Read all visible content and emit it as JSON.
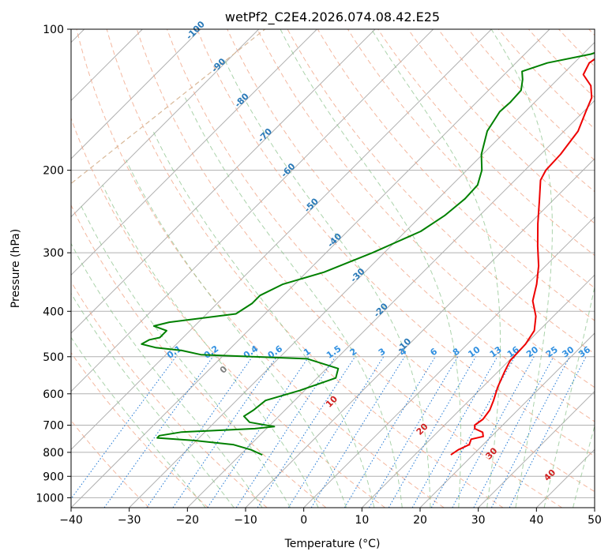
{
  "chart_data": {
    "type": "line",
    "subtype": "skew-t log-p",
    "title": "wetPf2_C2E4.2026.074.08.42.E25",
    "xlabel": "Temperature (°C)",
    "ylabel": "Pressure (hPa)",
    "xlim": [
      -40,
      50
    ],
    "ylim": [
      1050,
      100
    ],
    "y_scale": "log",
    "x_ticks": [
      "−40",
      "−30",
      "−20",
      "−10",
      "0",
      "10",
      "20",
      "30",
      "40",
      "50"
    ],
    "y_ticks": [
      "100",
      "200",
      "300",
      "400",
      "500",
      "600",
      "700",
      "800",
      "900",
      "1000"
    ],
    "grid": true,
    "series": [
      {
        "key": "temperature",
        "color": "#ee0000",
        "points": [
          [
            810,
            16.2
          ],
          [
            790,
            16.6
          ],
          [
            770,
            17.6
          ],
          [
            750,
            17.0
          ],
          [
            740,
            18.6
          ],
          [
            725,
            17.8
          ],
          [
            712,
            15.8
          ],
          [
            700,
            15.2
          ],
          [
            680,
            15.6
          ],
          [
            650,
            15.2
          ],
          [
            620,
            14.2
          ],
          [
            580,
            12.6
          ],
          [
            540,
            11.2
          ],
          [
            510,
            10.2
          ],
          [
            470,
            10.0
          ],
          [
            440,
            9.2
          ],
          [
            410,
            7.0
          ],
          [
            380,
            3.8
          ],
          [
            350,
            1.6
          ],
          [
            320,
            -1.2
          ],
          [
            290,
            -4.8
          ],
          [
            260,
            -8.6
          ],
          [
            230,
            -12.6
          ],
          [
            210,
            -15.6
          ],
          [
            200,
            -16.4
          ],
          [
            185,
            -16.6
          ],
          [
            165,
            -17.6
          ],
          [
            150,
            -19.6
          ],
          [
            140,
            -21.0
          ],
          [
            132,
            -23.2
          ],
          [
            125,
            -26.4
          ],
          [
            118,
            -27.4
          ],
          [
            110,
            -26.4
          ],
          [
            105,
            -25.8
          ],
          [
            100,
            -25.0
          ]
        ]
      },
      {
        "key": "dewpoint",
        "color": "#008000",
        "points": [
          [
            810,
            -16.2
          ],
          [
            790,
            -19.0
          ],
          [
            770,
            -23.0
          ],
          [
            755,
            -30.2
          ],
          [
            745,
            -37.2
          ],
          [
            737,
            -37.2
          ],
          [
            724,
            -34.0
          ],
          [
            712,
            -22.0
          ],
          [
            705,
            -19.0
          ],
          [
            690,
            -24.0
          ],
          [
            670,
            -26.0
          ],
          [
            650,
            -25.4
          ],
          [
            620,
            -25.0
          ],
          [
            590,
            -20.8
          ],
          [
            555,
            -16.8
          ],
          [
            530,
            -18.0
          ],
          [
            505,
            -25.0
          ],
          [
            495,
            -44.0
          ],
          [
            485,
            -48.0
          ],
          [
            478,
            -53.0
          ],
          [
            470,
            -56.0
          ],
          [
            460,
            -55.4
          ],
          [
            455,
            -54.0
          ],
          [
            440,
            -54.0
          ],
          [
            430,
            -57.0
          ],
          [
            422,
            -55.0
          ],
          [
            405,
            -45.0
          ],
          [
            385,
            -44.0
          ],
          [
            370,
            -44.0
          ],
          [
            350,
            -42.0
          ],
          [
            330,
            -37.0
          ],
          [
            300,
            -32.0
          ],
          [
            270,
            -27.4
          ],
          [
            250,
            -26.0
          ],
          [
            230,
            -25.4
          ],
          [
            215,
            -25.6
          ],
          [
            200,
            -27.4
          ],
          [
            185,
            -30.2
          ],
          [
            165,
            -33.2
          ],
          [
            150,
            -34.4
          ],
          [
            143,
            -34.2
          ],
          [
            135,
            -34.4
          ],
          [
            128,
            -36.0
          ],
          [
            123,
            -37.5
          ],
          [
            118,
            -34.6
          ],
          [
            113,
            -28.6
          ],
          [
            108,
            -25.6
          ],
          [
            104,
            -26.0
          ],
          [
            100,
            -27.0
          ]
        ]
      }
    ],
    "mixing_ratio_labels": [
      "0.1",
      "0.2",
      "0.4",
      "0.6",
      "1",
      "1.5",
      "2",
      "3",
      "4",
      "6",
      "8",
      "10",
      "13",
      "16",
      "20",
      "25",
      "30",
      "36"
    ],
    "mixing_ratio_values": [
      0.1,
      0.2,
      0.4,
      0.6,
      1,
      1.5,
      2,
      3,
      4,
      6,
      8,
      10,
      13,
      16,
      20,
      25,
      30,
      36
    ],
    "isotherm_labels": [
      "-100",
      "-90",
      "-80",
      "-70",
      "-60",
      "-50",
      "-40",
      "-30",
      "-20",
      "-10"
    ],
    "moist_adiabat_labels": [
      "0",
      "10",
      "20",
      "30",
      "40"
    ],
    "colors": {
      "isotherm": "#b0b0b0",
      "isobar": "#b0b0b0",
      "dry_adiabat": "#f0a080",
      "moist_adiabat": "#88c088",
      "mixing_ratio": "#1f77d4",
      "isotherm_label": "#2a7ab8",
      "mixing_ratio_label": "#2f8fe0",
      "moist_adiabat_label": "#d02020",
      "zero_label": "#808080",
      "curved_guide": "#d8b898"
    }
  }
}
